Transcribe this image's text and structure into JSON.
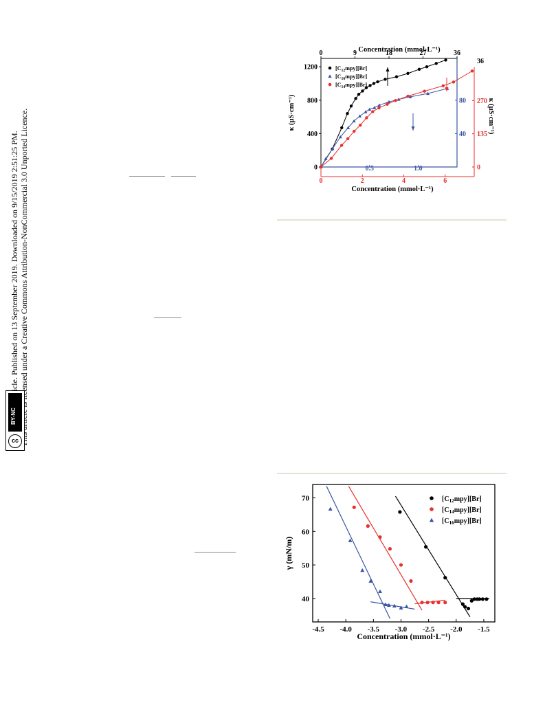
{
  "sidebar": {
    "line1": "Open Access Article. Published on 13 September 2019. Downloaded on 9/15/2019 2:51:25 PM.",
    "line2": "This article is licensed under a Creative Commons Attribution-NonCommercial 3.0 Unported Licence.",
    "badge_cc": "cc",
    "badge_by": "BY-NC"
  },
  "figures": [
    {
      "chart_data": {
        "type": "scatter",
        "title": "",
        "xlabel_bottom": "Concentration (mmol·L⁻¹)",
        "xlabel_top": "Concentration (mmol·L⁻¹)",
        "ylabel_left": "κ (μS·cm⁻¹)",
        "ylabel_right": "κ (μS·cm⁻¹)",
        "axes": {
          "black_x": {
            "range": [
              0,
              36
            ],
            "ticks": [
              "0",
              "9",
              "18",
              "27",
              "36"
            ]
          },
          "black_y": {
            "range": [
              0,
              1300
            ],
            "ticks": [
              "0",
              "400",
              "800",
              "1200"
            ]
          },
          "red_x": {
            "range": [
              0,
              7.4
            ],
            "ticks": [
              "0",
              "2",
              "4",
              "6"
            ]
          },
          "red_y": {
            "range": [
              0,
              405
            ],
            "ticks": [
              "0",
              "135",
              "270"
            ]
          },
          "blue_x": {
            "range": [
              0,
              1.4
            ],
            "ticks": [
              "0.5",
              "1.0"
            ]
          },
          "blue_y": {
            "range": [
              0,
              130
            ],
            "ticks": [
              "40",
              "80"
            ]
          }
        },
        "legend_position": "top-left",
        "series": [
          {
            "name": "[C12mpy][Br]",
            "color": "#000000",
            "marker": "circle",
            "axes": "black",
            "x": [
              0.0,
              3.0,
              5.5,
              7.0,
              8.0,
              9.2,
              10.0,
              11.0,
              12.0,
              13.0,
              14.0,
              15.0,
              17.0,
              20.0,
              23.0,
              26.0,
              28.0,
              30.5,
              33.0
            ],
            "y": [
              0,
              215,
              470,
              640,
              730,
              820,
              870,
              910,
              950,
              975,
              1000,
              1020,
              1050,
              1080,
              1120,
              1170,
              1200,
              1240,
              1280
            ]
          },
          {
            "name": "[C16mpy][Br]",
            "color": "#3a55a4",
            "marker": "triangle",
            "axes": "blue",
            "x": [
              0.0,
              0.05,
              0.12,
              0.2,
              0.28,
              0.34,
              0.4,
              0.46,
              0.5,
              0.55,
              0.6,
              0.7,
              0.8,
              0.92,
              1.1,
              1.3
            ],
            "y": [
              0,
              10,
              22,
              36,
              47,
              55,
              61,
              66,
              69,
              71,
              74,
              78,
              81,
              84,
              88,
              94
            ]
          },
          {
            "name": "[C14mpy][Br]",
            "color": "#e8302c",
            "marker": "circle",
            "axes": "red",
            "x": [
              0.0,
              0.5,
              1.0,
              1.3,
              1.6,
              1.9,
              2.2,
              2.5,
              2.8,
              3.2,
              3.6,
              4.2,
              5.0,
              5.9,
              6.4,
              7.3
            ],
            "y": [
              0,
              35,
              88,
              115,
              145,
              170,
              200,
              225,
              240,
              255,
              270,
              288,
              308,
              330,
              345,
              390
            ]
          }
        ]
      },
      "annotations": {
        "blue_x_tick_half": "0.5",
        "blue_x_tick_one": "1.0"
      }
    },
    {
      "chart_data": {
        "type": "scatter",
        "title": "",
        "xlabel": "Concentration (mmol·L⁻¹)",
        "ylabel": "γ (mN/m)",
        "xlim": [
          -4.6,
          -1.3
        ],
        "ylim": [
          33,
          74
        ],
        "x_ticks": [
          "-4.5",
          "-4.0",
          "-3.5",
          "-3.0",
          "-2.5",
          "-2.0",
          "-1.5"
        ],
        "y_ticks": [
          "40",
          "50",
          "60",
          "70"
        ],
        "legend_position": "top-right",
        "series": [
          {
            "name": "[C12mpy][Br]",
            "color": "#000000",
            "marker": "circle",
            "x": [
              -3.02,
              -2.55,
              -2.2,
              -1.88,
              -1.84,
              -1.78,
              -1.72,
              -1.67,
              -1.62,
              -1.58,
              -1.52,
              -1.45
            ],
            "y": [
              65.8,
              55.4,
              46.2,
              38.3,
              37.5,
              37.0,
              39.3,
              39.8,
              39.8,
              39.8,
              39.8,
              39.8
            ]
          },
          {
            "name": "[C14mpy][Br]",
            "color": "#e8302c",
            "marker": "circle",
            "x": [
              -3.85,
              -3.6,
              -3.38,
              -3.2,
              -3.0,
              -2.82,
              -2.62,
              -2.52,
              -2.42,
              -2.32,
              -2.2
            ],
            "y": [
              67.2,
              61.6,
              58.3,
              54.8,
              50.0,
              45.2,
              38.8,
              38.8,
              38.8,
              38.8,
              38.8
            ]
          },
          {
            "name": "[C16mpy][Br]",
            "color": "#3a55a4",
            "marker": "triangle",
            "x": [
              -4.28,
              -3.92,
              -3.7,
              -3.55,
              -3.38,
              -3.28,
              -3.22,
              -3.12,
              -3.0,
              -2.9
            ],
            "y": [
              66.7,
              57.3,
              48.4,
              45.2,
              42.1,
              38.2,
              38.0,
              37.8,
              37.2,
              37.6
            ]
          }
        ],
        "fit_lines": [
          {
            "color": "#000000",
            "x": [
              -3.1,
              -1.75
            ],
            "y": [
              70.5,
              34.5
            ]
          },
          {
            "color": "#000000",
            "x": [
              -2.0,
              -1.4
            ],
            "y": [
              40.0,
              40.0
            ]
          },
          {
            "color": "#e8302c",
            "x": [
              -3.95,
              -2.62
            ],
            "y": [
              73.5,
              36.5
            ]
          },
          {
            "color": "#e8302c",
            "x": [
              -2.75,
              -2.2
            ],
            "y": [
              38.4,
              39.5
            ]
          },
          {
            "color": "#3a55a4",
            "x": [
              -4.35,
              -3.2
            ],
            "y": [
              73.5,
              34.0
            ]
          },
          {
            "color": "#3a55a4",
            "x": [
              -3.55,
              -2.75
            ],
            "y": [
              39.0,
              36.8
            ]
          }
        ]
      }
    }
  ]
}
